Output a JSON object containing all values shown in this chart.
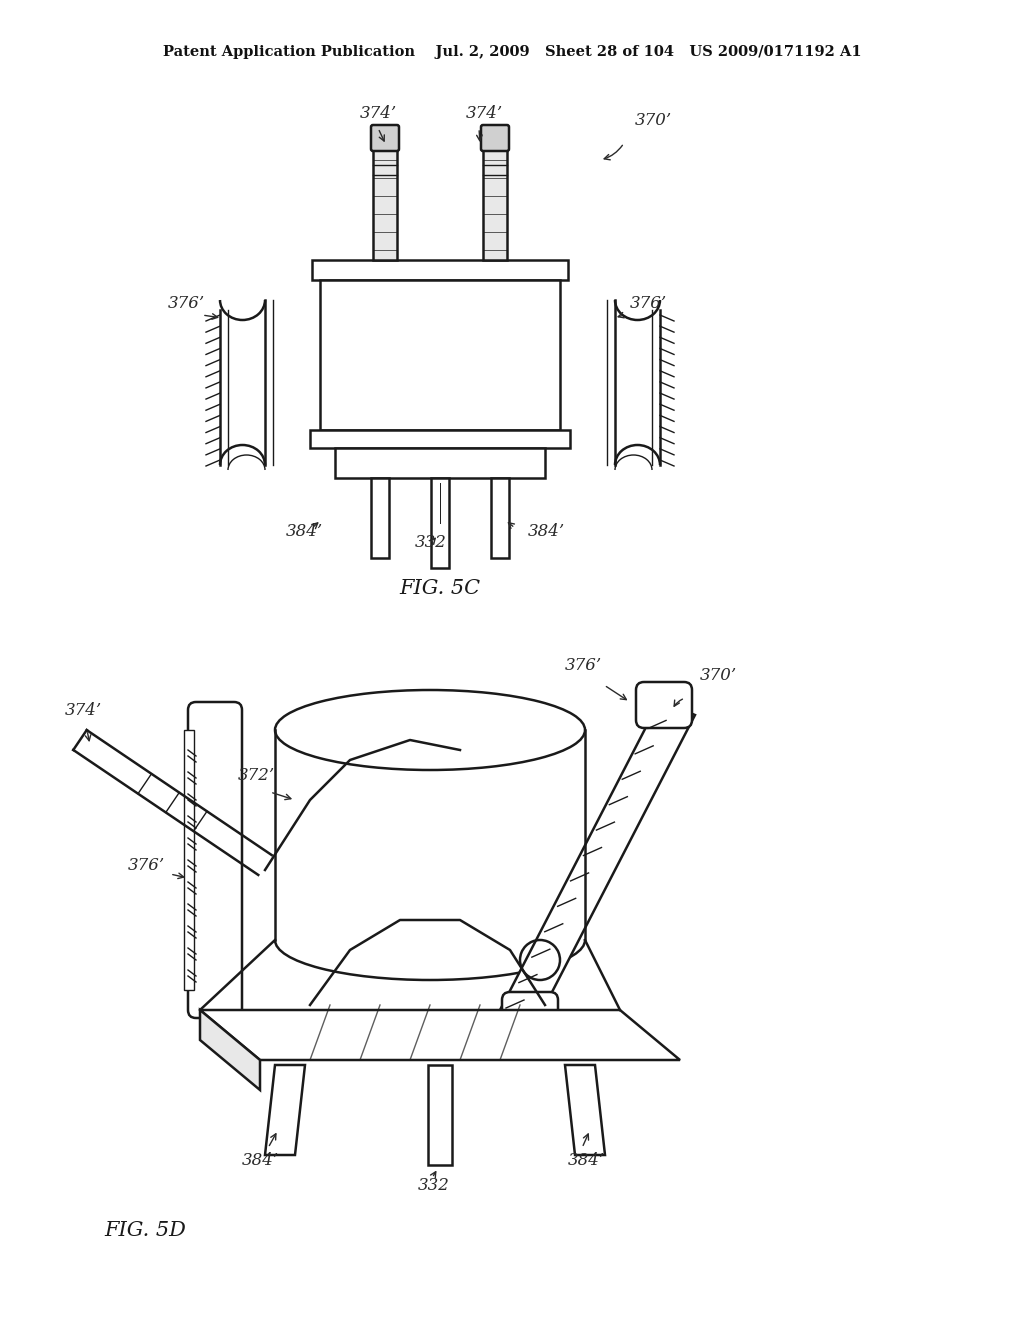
{
  "bg_color": "#ffffff",
  "line_color": "#1a1a1a",
  "header": "Patent Application Publication    Jul. 2, 2009   Sheet 28 of 104   US 2009/0171192 A1",
  "fig5c_label": "FIG. 5C",
  "fig5d_label": "FIG. 5D",
  "annotation_color": "#2a2a2a"
}
